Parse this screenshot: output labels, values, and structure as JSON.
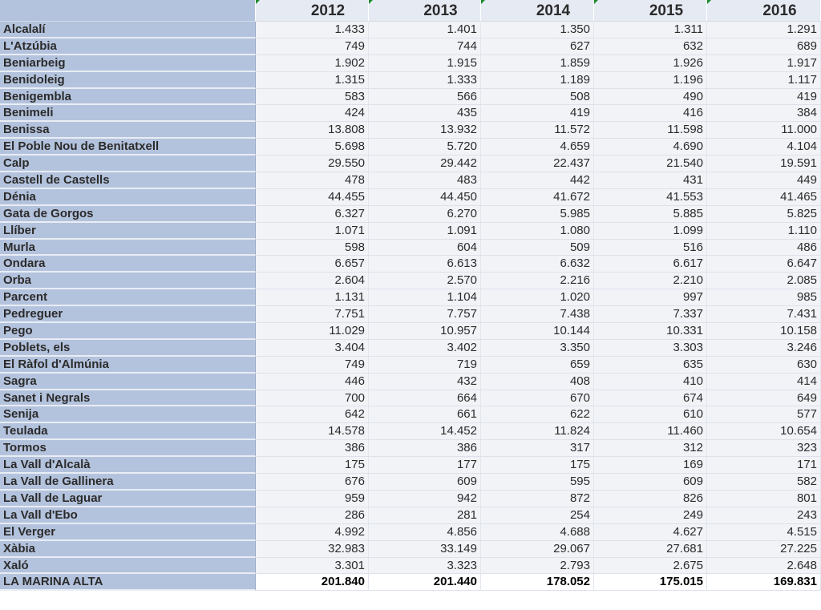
{
  "table": {
    "corner_label": "",
    "years": [
      "2012",
      "2013",
      "2014",
      "2015",
      "2016"
    ],
    "rows": [
      {
        "name": "Alcalalí",
        "values": [
          "1.433",
          "1.401",
          "1.350",
          "1.311",
          "1.291"
        ]
      },
      {
        "name": "L'Atzúbia",
        "values": [
          "749",
          "744",
          "627",
          "632",
          "689"
        ]
      },
      {
        "name": "Beniarbeig",
        "values": [
          "1.902",
          "1.915",
          "1.859",
          "1.926",
          "1.917"
        ]
      },
      {
        "name": "Benidoleig",
        "values": [
          "1.315",
          "1.333",
          "1.189",
          "1.196",
          "1.117"
        ]
      },
      {
        "name": "Benigembla",
        "values": [
          "583",
          "566",
          "508",
          "490",
          "419"
        ]
      },
      {
        "name": "Benimeli",
        "values": [
          "424",
          "435",
          "419",
          "416",
          "384"
        ]
      },
      {
        "name": "Benissa",
        "values": [
          "13.808",
          "13.932",
          "11.572",
          "11.598",
          "11.000"
        ]
      },
      {
        "name": "El Poble Nou de Benitatxell",
        "values": [
          "5.698",
          "5.720",
          "4.659",
          "4.690",
          "4.104"
        ]
      },
      {
        "name": "Calp",
        "values": [
          "29.550",
          "29.442",
          "22.437",
          "21.540",
          "19.591"
        ]
      },
      {
        "name": "Castell de Castells",
        "values": [
          "478",
          "483",
          "442",
          "431",
          "449"
        ]
      },
      {
        "name": "Dénia",
        "values": [
          "44.455",
          "44.450",
          "41.672",
          "41.553",
          "41.465"
        ]
      },
      {
        "name": "Gata de Gorgos",
        "values": [
          "6.327",
          "6.270",
          "5.985",
          "5.885",
          "5.825"
        ]
      },
      {
        "name": "Llíber",
        "values": [
          "1.071",
          "1.091",
          "1.080",
          "1.099",
          "1.110"
        ]
      },
      {
        "name": "Murla",
        "values": [
          "598",
          "604",
          "509",
          "516",
          "486"
        ]
      },
      {
        "name": "Ondara",
        "values": [
          "6.657",
          "6.613",
          "6.632",
          "6.617",
          "6.647"
        ]
      },
      {
        "name": "Orba",
        "values": [
          "2.604",
          "2.570",
          "2.216",
          "2.210",
          "2.085"
        ]
      },
      {
        "name": "Parcent",
        "values": [
          "1.131",
          "1.104",
          "1.020",
          "997",
          "985"
        ]
      },
      {
        "name": "Pedreguer",
        "values": [
          "7.751",
          "7.757",
          "7.438",
          "7.337",
          "7.431"
        ]
      },
      {
        "name": "Pego",
        "values": [
          "11.029",
          "10.957",
          "10.144",
          "10.331",
          "10.158"
        ]
      },
      {
        "name": "Poblets, els",
        "values": [
          "3.404",
          "3.402",
          "3.350",
          "3.303",
          "3.246"
        ]
      },
      {
        "name": "El Ràfol d'Almúnia",
        "values": [
          "749",
          "719",
          "659",
          "635",
          "630"
        ]
      },
      {
        "name": "Sagra",
        "values": [
          "446",
          "432",
          "408",
          "410",
          "414"
        ]
      },
      {
        "name": "Sanet i Negrals",
        "values": [
          "700",
          "664",
          "670",
          "674",
          "649"
        ]
      },
      {
        "name": "Senija",
        "values": [
          "642",
          "661",
          "622",
          "610",
          "577"
        ]
      },
      {
        "name": "Teulada",
        "values": [
          "14.578",
          "14.452",
          "11.824",
          "11.460",
          "10.654"
        ]
      },
      {
        "name": "Tormos",
        "values": [
          "386",
          "386",
          "317",
          "312",
          "323"
        ]
      },
      {
        "name": "La Vall d'Alcalà",
        "values": [
          "175",
          "177",
          "175",
          "169",
          "171"
        ]
      },
      {
        "name": "La Vall de Gallinera",
        "values": [
          "676",
          "609",
          "595",
          "609",
          "582"
        ]
      },
      {
        "name": "La Vall de Laguar",
        "values": [
          "959",
          "942",
          "872",
          "826",
          "801"
        ]
      },
      {
        "name": "La Vall d'Ebo",
        "values": [
          "286",
          "281",
          "254",
          "249",
          "243"
        ]
      },
      {
        "name": "El Verger",
        "values": [
          "4.992",
          "4.856",
          "4.688",
          "4.627",
          "4.515"
        ]
      },
      {
        "name": "Xàbia",
        "values": [
          "32.983",
          "33.149",
          "29.067",
          "27.681",
          "27.225"
        ]
      },
      {
        "name": "Xaló",
        "values": [
          "3.301",
          "3.323",
          "2.793",
          "2.675",
          "2.648"
        ]
      }
    ],
    "total": {
      "name": "LA MARINA ALTA",
      "values": [
        "201.840",
        "201.440",
        "178.052",
        "175.015",
        "169.831"
      ]
    }
  }
}
